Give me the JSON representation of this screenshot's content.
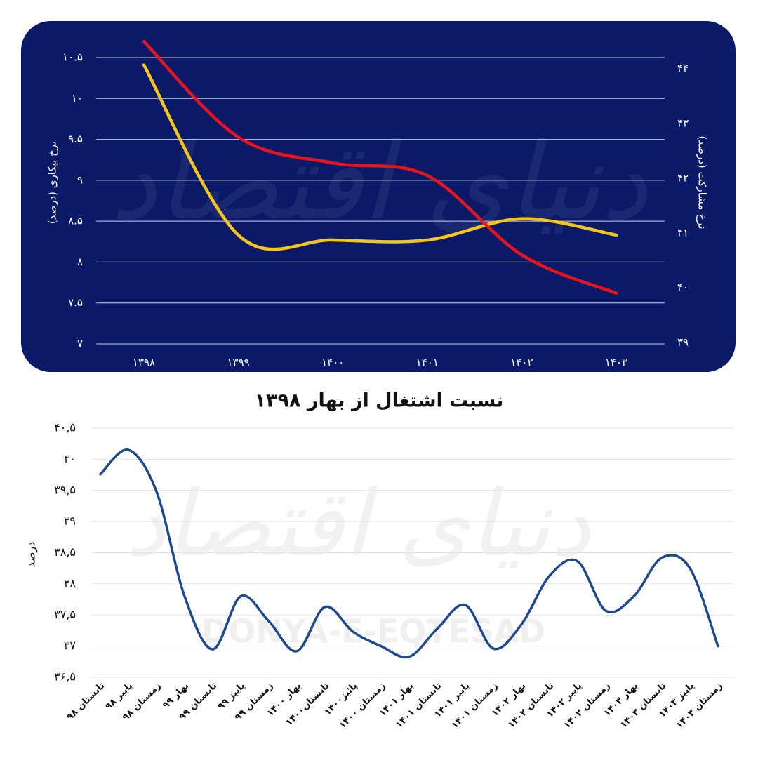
{
  "watermarks": [
    "دنیای اقتصاد",
    "DONYA-E-EQTESAD"
  ],
  "chart_data": [
    {
      "type": "line",
      "ylabel": "نرخ بیکاری (درصد)",
      "y2label": "نرخ مشارکت (درصد)",
      "categories": [
        "۱۳۹۸",
        "۱۳۹۹",
        "۱۴۰۰",
        "۱۴۰۱",
        "۱۴۰۲",
        "۱۴۰۳"
      ],
      "series": [
        {
          "color": "#f5c518",
          "values": [
            10.41,
            8.33,
            8.27,
            8.27,
            8.53,
            8.33
          ]
        },
        {
          "color": "#e8141c",
          "axis": "y2",
          "values": [
            44.5,
            42.75,
            42.28,
            42.05,
            40.6,
            39.9
          ]
        }
      ],
      "ylim": [
        7,
        10.5
      ],
      "yticks": [
        {
          "value": 7,
          "label": "۷"
        },
        {
          "value": 7.5,
          "label": "۷.۵"
        },
        {
          "value": 8,
          "label": "۸"
        },
        {
          "value": 8.5,
          "label": "۸.۵"
        },
        {
          "value": 9,
          "label": "۹"
        },
        {
          "value": 9.5,
          "label": "۹.۵"
        },
        {
          "value": 10,
          "label": "۱۰"
        },
        {
          "value": 10.5,
          "label": "۱۰.۵"
        }
      ],
      "y2lim": [
        39,
        44
      ],
      "y2ticks": [
        {
          "value": 39,
          "label": "۳۹"
        },
        {
          "value": 40,
          "label": "۴۰"
        },
        {
          "value": 41,
          "label": "۴۱"
        },
        {
          "value": 42,
          "label": "۴۲"
        },
        {
          "value": 43,
          "label": "۴۳"
        },
        {
          "value": 44,
          "label": "۴۴"
        }
      ],
      "grid": true,
      "smooth": true,
      "background": "#0b1a68"
    },
    {
      "type": "line",
      "title": "نسبت اشتغال از بهار ۱۳۹۸",
      "ylabel": "درصد",
      "categories": [
        "تابستان ۹۸",
        "پاییز ۹۸",
        "زمستان ۹۸",
        "بهار ۹۹",
        "تابستان ۹۹",
        "پاییز ۹۹",
        "زمستان ۹۹",
        "بهار ۱۴۰۰",
        "تابستان۱۴۰۰",
        "پائیز۱۴۰۰",
        "زمستان ۱۴۰۰",
        "بهار ۱۴۰۱",
        "تابستان ۱۴۰۱",
        "پاییز ۱۴۰۱",
        "زمستان ۱۴۰۱",
        "بهار ۱۴۰۲",
        "تابستان ۱۴۰۲",
        "پاییز ۱۴۰۲",
        "زمستان ۱۴۰۲",
        "بهار ۱۴۰۳",
        "تابستان ۱۴۰۳",
        "پاییز ۱۴۰۳",
        "زمستان ۱۴۰۳"
      ],
      "series": [
        {
          "color": "#1d4a8c",
          "values": [
            39.76,
            40.15,
            39.48,
            37.8,
            36.95,
            37.8,
            37.4,
            36.92,
            37.63,
            37.23,
            37.0,
            36.83,
            37.28,
            37.66,
            36.96,
            37.35,
            38.13,
            38.36,
            37.57,
            37.8,
            38.42,
            38.25,
            37.0
          ]
        }
      ],
      "ylim": [
        36.5,
        40.5
      ],
      "yticks": [
        {
          "value": 36.5,
          "label": "۳۶,۵"
        },
        {
          "value": 37,
          "label": "۳۷"
        },
        {
          "value": 37.5,
          "label": "۳۷,۵"
        },
        {
          "value": 38,
          "label": "۳۸"
        },
        {
          "value": 38.5,
          "label": "۳۸,۵"
        },
        {
          "value": 39,
          "label": "۳۹"
        },
        {
          "value": 39.5,
          "label": "۳۹,۵"
        },
        {
          "value": 40,
          "label": "۴۰"
        },
        {
          "value": 40.5,
          "label": "۴۰,۵"
        }
      ],
      "grid": true,
      "smooth": true,
      "background": "#ffffff"
    }
  ]
}
